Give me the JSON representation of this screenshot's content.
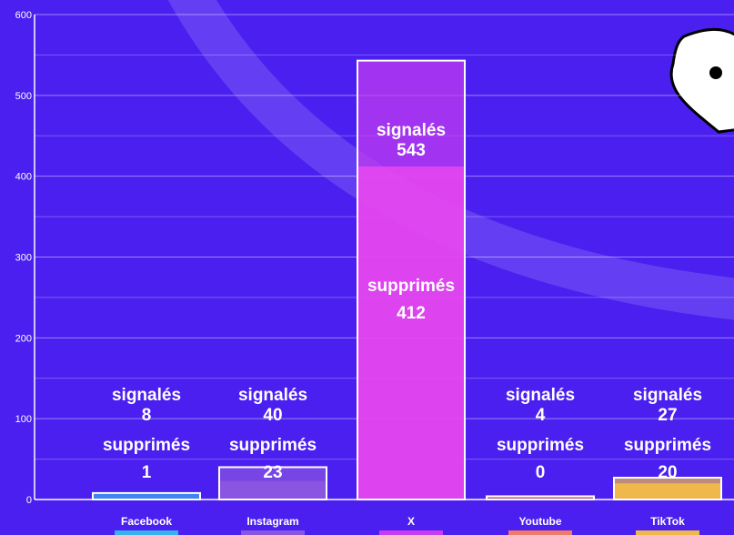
{
  "chart_data": {
    "type": "bar",
    "categories": [
      "Facebook",
      "Instagram",
      "X",
      "Youtube",
      "TikTok"
    ],
    "series": [
      {
        "name": "signalés",
        "values": [
          8,
          40,
          543,
          4,
          27
        ]
      },
      {
        "name": "supprimés",
        "values": [
          1,
          23,
          412,
          0,
          20
        ]
      }
    ],
    "ylim": [
      0,
      600
    ],
    "yticks": [
      0,
      100,
      200,
      300,
      400,
      500,
      600
    ],
    "grid": true,
    "colors": {
      "background": "#4a1ff0",
      "Facebook": "#3ab0f0",
      "Instagram": "#8a55e0",
      "X": "#c83cf0",
      "Youtube": "#f07a6a",
      "TikTok": "#f0b84a"
    }
  }
}
